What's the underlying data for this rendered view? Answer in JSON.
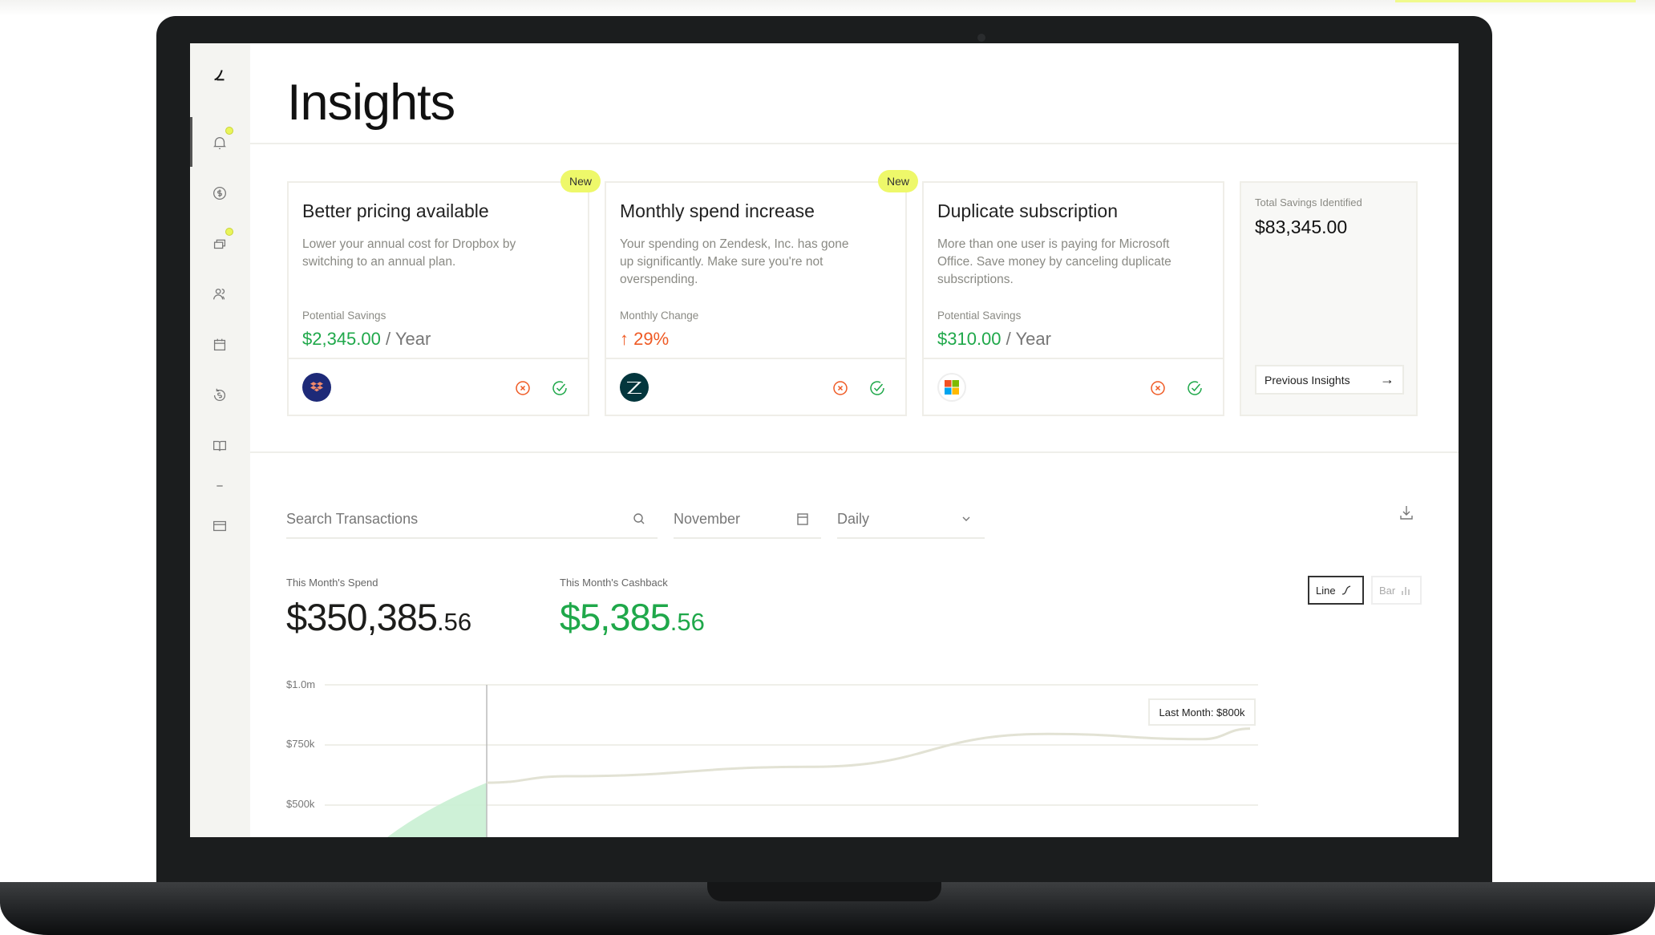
{
  "page": {
    "title": "Insights"
  },
  "sidebar": {
    "items": [
      {
        "icon": "logo-bird-icon"
      },
      {
        "icon": "bell-icon",
        "badge": true
      },
      {
        "icon": "dollar-circle-icon"
      },
      {
        "icon": "cards-icon",
        "badge": true
      },
      {
        "icon": "users-icon"
      },
      {
        "icon": "calendar-refresh-icon"
      },
      {
        "icon": "refund-icon"
      },
      {
        "icon": "book-icon"
      },
      {
        "icon": "minus-icon"
      },
      {
        "icon": "credit-card-icon"
      }
    ]
  },
  "insights": [
    {
      "badge": "New",
      "title": "Better pricing available",
      "description": "Lower your annual cost for Dropbox by switching to an annual plan.",
      "metric_label": "Potential Savings",
      "metric_value": "$2,345.00",
      "metric_unit": " / Year",
      "vendor": "Dropbox",
      "logo_color": "#1e2a78"
    },
    {
      "badge": "New",
      "title": "Monthly spend increase",
      "description": "Your spending on Zendesk, Inc. has gone up significantly. Make sure you're not overspending.",
      "metric_label": "Monthly Change",
      "metric_value": "↑ 29%",
      "metric_unit": "",
      "vendor": "Zendesk",
      "logo_color": "#03363d"
    },
    {
      "title": "Duplicate subscription",
      "description": "More than one user is paying for Microsoft Office. Save money by canceling duplicate subscriptions.",
      "metric_label": "Potential Savings",
      "metric_value": "$310.00",
      "metric_unit": " / Year",
      "vendor": "Microsoft"
    }
  ],
  "total": {
    "label": "Total Savings Identified",
    "amount": "$83,345.00",
    "previous_button": "Previous Insights"
  },
  "filters": {
    "search_placeholder": "Search Transactions",
    "month": "November",
    "interval": "Daily"
  },
  "stats": {
    "spend_label": "This Month's Spend",
    "spend_main": "$350,385",
    "spend_cents": ".56",
    "cashback_label": "This Month's Cashback",
    "cashback_main": "$5,385",
    "cashback_cents": ".56"
  },
  "chart_toggle": {
    "line": "Line",
    "bar": "Bar",
    "selected": "Line"
  },
  "colors": {
    "green": "#1fa84a",
    "orange": "#ef5a24",
    "badge": "#eef86a",
    "area": "#c9efd3"
  },
  "chart_data": {
    "type": "line",
    "y_ticks": [
      "$1.0m",
      "$750k",
      "$500k"
    ],
    "ylim": [
      340000,
      1000000
    ],
    "grid": true,
    "annotation": "Last Month: $800k",
    "series": [
      {
        "values": [
          593000,
          620000,
          659000,
          796000,
          774000,
          818000
        ]
      },
      {
        "values": [
          340000,
          500000,
          593000
        ]
      }
    ]
  }
}
